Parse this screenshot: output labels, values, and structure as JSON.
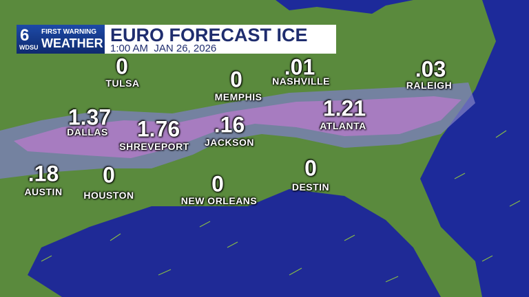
{
  "header": {
    "logo_number": "6",
    "logo_station": "WDSU",
    "logo_tag": "FIRST WARNING",
    "logo_brand": "WEATHER",
    "title": "EURO FORECAST ICE",
    "subtitle": "1:00 AM  JAN 26, 2026"
  },
  "cities": [
    {
      "name": "TULSA",
      "amount": "0"
    },
    {
      "name": "MEMPHIS",
      "amount": "0"
    },
    {
      "name": "NASHVILLE",
      "amount": ".01"
    },
    {
      "name": "RALEIGH",
      "amount": ".03"
    },
    {
      "name": "DALLAS",
      "amount": "1.37"
    },
    {
      "name": "SHREVEPORT",
      "amount": "1.76"
    },
    {
      "name": "JACKSON",
      "amount": ".16"
    },
    {
      "name": "ATLANTA",
      "amount": "1.21"
    },
    {
      "name": "AUSTIN",
      "amount": ".18"
    },
    {
      "name": "HOUSTON",
      "amount": "0"
    },
    {
      "name": "NEW ORLEANS",
      "amount": "0"
    },
    {
      "name": "DESTIN",
      "amount": "0"
    }
  ]
}
